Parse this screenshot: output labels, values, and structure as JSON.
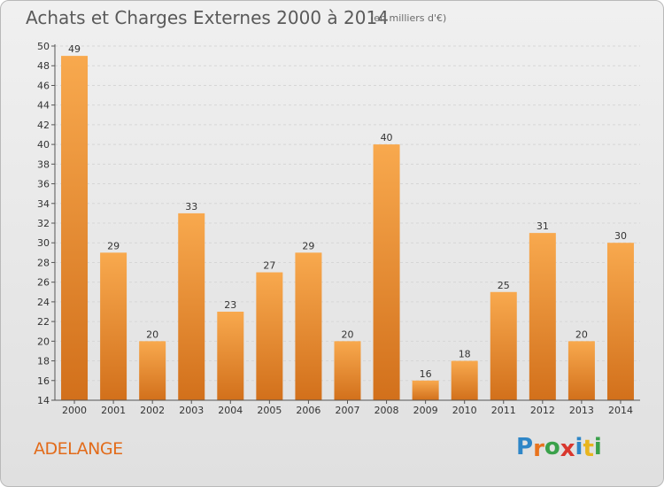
{
  "title": "Achats et Charges Externes 2000 à 2014",
  "subtitle": "(en milliers d'€)",
  "location": "ADELANGE",
  "brand": {
    "letters": [
      "P",
      "r",
      "o",
      "x",
      "i",
      "t",
      "i"
    ],
    "colors": [
      "#2e86c7",
      "#e8731e",
      "#3aa14a",
      "#d9372e",
      "#2e86c7",
      "#e8b51e",
      "#3aa14a"
    ]
  },
  "colors": {
    "bar_top": "#f8a94e",
    "bar_bottom": "#d2701b",
    "grid": "#d6d6d6",
    "axis": "#555555"
  },
  "chart_data": {
    "type": "bar",
    "categories": [
      "2000",
      "2001",
      "2002",
      "2003",
      "2004",
      "2005",
      "2006",
      "2007",
      "2008",
      "2009",
      "2010",
      "2011",
      "2012",
      "2013",
      "2014"
    ],
    "values": [
      49,
      29,
      20,
      33,
      23,
      27,
      29,
      20,
      40,
      16,
      18,
      25,
      31,
      20,
      30
    ],
    "ylim": [
      14,
      50
    ],
    "yticks": [
      14,
      16,
      18,
      20,
      22,
      24,
      26,
      28,
      30,
      32,
      34,
      36,
      38,
      40,
      42,
      44,
      46,
      48,
      50
    ],
    "grid": true,
    "data_labels": true
  }
}
